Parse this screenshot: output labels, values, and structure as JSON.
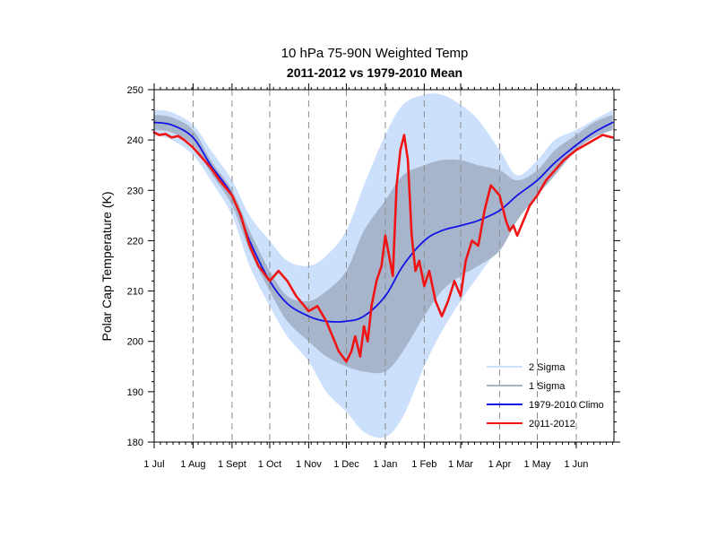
{
  "chart_data": {
    "type": "line",
    "title": "10 hPa 75-90N Weighted Temp",
    "subtitle": "2011-2012 vs 1979-2010 Mean",
    "xlabel": "",
    "ylabel": "Polar Cap Temperature (K)",
    "ylim": [
      180,
      250
    ],
    "yticks": [
      180,
      190,
      200,
      210,
      220,
      230,
      240,
      250
    ],
    "xlim": [
      "2011-07-01",
      "2012-06-30"
    ],
    "xticks": [
      {
        "date": "2011-07-01",
        "label": "1 Jul"
      },
      {
        "date": "2011-08-01",
        "label": "1 Aug"
      },
      {
        "date": "2011-09-01",
        "label": "1 Sept"
      },
      {
        "date": "2011-10-01",
        "label": "1 Oct"
      },
      {
        "date": "2011-11-01",
        "label": "1 Nov"
      },
      {
        "date": "2011-12-01",
        "label": "1 Dec"
      },
      {
        "date": "2012-01-01",
        "label": "1 Jan"
      },
      {
        "date": "2012-02-01",
        "label": "1 Feb"
      },
      {
        "date": "2012-03-01",
        "label": "1 Mar"
      },
      {
        "date": "2012-04-01",
        "label": "1 Apr"
      },
      {
        "date": "2012-05-01",
        "label": "1 May"
      },
      {
        "date": "2012-06-01",
        "label": "1 Jun"
      }
    ],
    "grid": "vertical dashed at month starts",
    "legend_position": "bottom-right",
    "legend": [
      {
        "label": "2 Sigma",
        "color": "#cce0fc",
        "kind": "band"
      },
      {
        "label": "1 Sigma",
        "color": "#a7b5cc",
        "kind": "band"
      },
      {
        "label": "1979-2010 Climo",
        "color": "#1414e6",
        "kind": "line"
      },
      {
        "label": "2011-2012",
        "color": "#f01414",
        "kind": "line"
      }
    ],
    "x": [
      "2011-07-01",
      "2011-07-15",
      "2011-08-01",
      "2011-08-15",
      "2011-09-01",
      "2011-09-15",
      "2011-10-01",
      "2011-10-15",
      "2011-11-01",
      "2011-11-15",
      "2011-12-01",
      "2011-12-15",
      "2012-01-01",
      "2012-01-15",
      "2012-02-01",
      "2012-02-15",
      "2012-03-01",
      "2012-03-15",
      "2012-04-01",
      "2012-04-15",
      "2012-05-01",
      "2012-05-15",
      "2012-06-01",
      "2012-06-15",
      "2012-06-30"
    ],
    "series": [
      {
        "name": "2 Sigma",
        "kind": "band",
        "color": "#cce0fc",
        "upper": [
          246,
          245.5,
          243,
          238,
          232,
          225,
          220,
          216,
          215,
          217,
          222,
          231,
          241,
          247,
          249,
          249,
          247,
          244,
          238,
          233,
          236,
          240,
          242,
          244,
          246
        ],
        "lower": [
          241,
          240,
          237,
          232,
          225,
          215,
          207,
          201,
          196,
          190,
          186,
          182,
          181,
          185,
          195,
          202,
          208,
          213,
          219,
          226,
          231,
          235,
          239,
          241.5,
          243
        ]
      },
      {
        "name": "1 Sigma",
        "kind": "band",
        "color": "#a7b5cc",
        "upper": [
          245,
          244.5,
          242,
          236,
          230,
          222,
          214,
          209,
          208,
          210,
          214,
          222,
          228,
          233,
          235,
          236,
          236,
          235,
          234,
          232,
          234,
          238,
          241,
          243.5,
          245
        ],
        "lower": [
          242,
          241.5,
          239,
          233.5,
          227,
          218,
          210,
          204,
          200,
          197,
          195,
          194,
          194,
          198,
          205,
          210,
          213,
          215,
          218,
          224,
          229,
          233,
          238,
          240.5,
          242
        ]
      },
      {
        "name": "1979-2010 Climo",
        "kind": "line",
        "color": "#1414e6",
        "values": [
          243.5,
          243,
          240.5,
          235,
          229,
          220,
          212,
          207.5,
          205,
          204,
          204,
          205,
          209,
          215,
          220,
          222,
          223,
          224,
          226,
          229,
          232,
          235.5,
          239,
          241.5,
          243.5
        ]
      },
      {
        "name": "2011-2012",
        "kind": "line",
        "color": "#f01414",
        "x": [
          "2011-07-01",
          "2011-07-05",
          "2011-07-10",
          "2011-07-15",
          "2011-07-20",
          "2011-07-25",
          "2011-08-01",
          "2011-08-08",
          "2011-08-15",
          "2011-08-22",
          "2011-09-01",
          "2011-09-08",
          "2011-09-15",
          "2011-09-22",
          "2011-10-01",
          "2011-10-08",
          "2011-10-15",
          "2011-10-22",
          "2011-11-01",
          "2011-11-08",
          "2011-11-15",
          "2011-11-20",
          "2011-11-25",
          "2011-12-01",
          "2011-12-05",
          "2011-12-08",
          "2011-12-12",
          "2011-12-15",
          "2011-12-18",
          "2011-12-21",
          "2011-12-25",
          "2011-12-29",
          "2012-01-01",
          "2012-01-04",
          "2012-01-07",
          "2012-01-10",
          "2012-01-13",
          "2012-01-16",
          "2012-01-19",
          "2012-01-22",
          "2012-01-25",
          "2012-01-28",
          "2012-02-01",
          "2012-02-05",
          "2012-02-10",
          "2012-02-15",
          "2012-02-20",
          "2012-02-25",
          "2012-03-01",
          "2012-03-05",
          "2012-03-10",
          "2012-03-15",
          "2012-03-20",
          "2012-03-25",
          "2012-04-01",
          "2012-04-03",
          "2012-04-06",
          "2012-04-09",
          "2012-04-12",
          "2012-04-15",
          "2012-04-20",
          "2012-04-25",
          "2012-05-01",
          "2012-05-08",
          "2012-05-15",
          "2012-05-22",
          "2012-06-01",
          "2012-06-08",
          "2012-06-15",
          "2012-06-22",
          "2012-06-30"
        ],
        "values": [
          241.5,
          241,
          241.2,
          240.5,
          240.8,
          240,
          238.5,
          236.5,
          234.5,
          232,
          229,
          225,
          219,
          215,
          212,
          214,
          212,
          209,
          206,
          207,
          204,
          201,
          198,
          196,
          198,
          201,
          197,
          203,
          200,
          207,
          212,
          215,
          221,
          217,
          213,
          231,
          238,
          241,
          236,
          221,
          214,
          216,
          211,
          214,
          208,
          205,
          208,
          212,
          209,
          216,
          220,
          219,
          226,
          231,
          229,
          227,
          224,
          222,
          223,
          221,
          224,
          227,
          229,
          232,
          234,
          236,
          238,
          239,
          240,
          241,
          240.5
        ]
      }
    ]
  }
}
